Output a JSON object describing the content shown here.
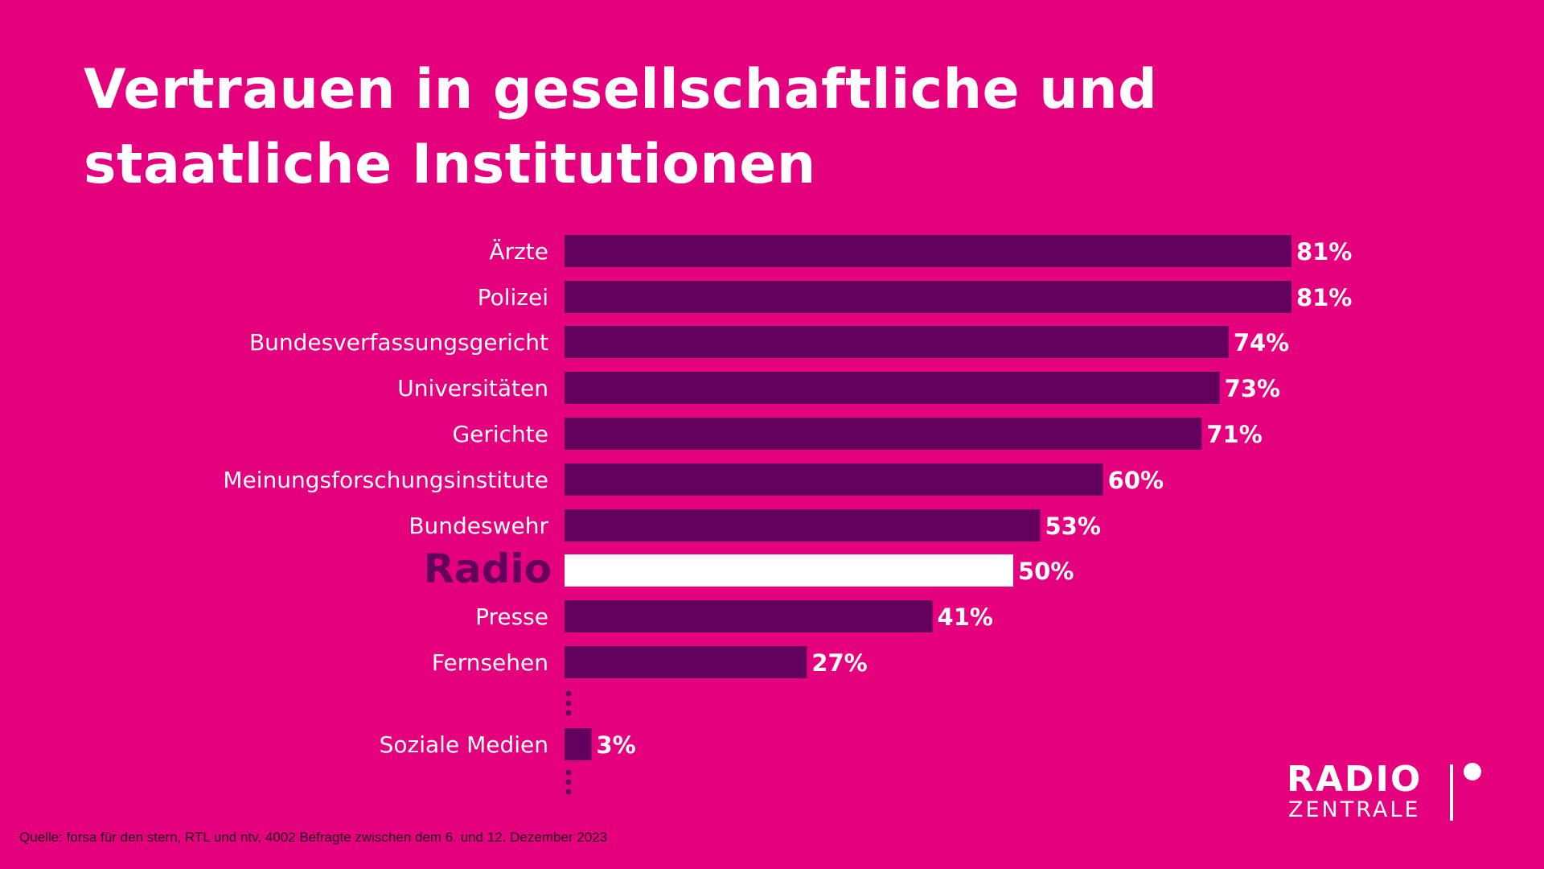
{
  "title": {
    "line1": "Vertrauen in gesellschaftliche und",
    "line2": "staatliche Institutionen"
  },
  "colors": {
    "background": "#e5007e",
    "bar": "#63005e",
    "highlight_bar": "#ffffff",
    "label_text": "#ffffff",
    "highlight_label_text": "#63005e"
  },
  "chart_data": {
    "type": "bar",
    "orientation": "horizontal",
    "categories": [
      "Ärzte",
      "Polizei",
      "Bundesverfassungsgericht",
      "Universitäten",
      "Gerichte",
      "Meinungsforschungsinstitute",
      "Bundeswehr",
      "Radio",
      "Presse",
      "Fernsehen",
      "Soziale Medien"
    ],
    "values": [
      81,
      81,
      74,
      73,
      71,
      60,
      53,
      50,
      41,
      27,
      3
    ],
    "value_labels": [
      "81%",
      "81%",
      "74%",
      "73%",
      "71%",
      "60%",
      "53%",
      "50%",
      "41%",
      "27%",
      "3%"
    ],
    "highlight_category": "Radio",
    "unit": "%",
    "xlim": [
      0,
      100
    ],
    "grid": false,
    "legend": "none"
  },
  "source": "Quelle: forsa für den stern, RTL und ntv, 4002 Befragte zwischen dem 6. und 12. Dezember 2023",
  "logo": {
    "line1": "RADIO",
    "line2": "ZENTRALE"
  }
}
